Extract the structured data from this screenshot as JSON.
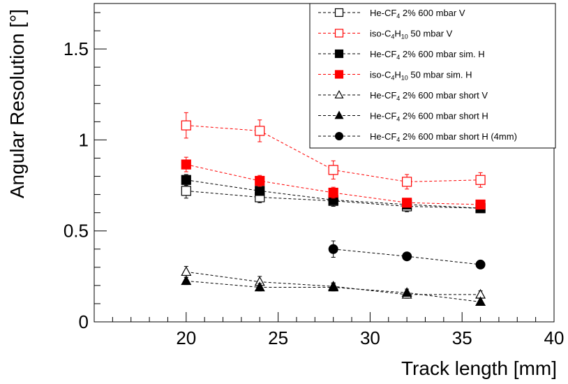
{
  "chart_data": {
    "type": "scatter",
    "xlabel": "Track length [mm]",
    "ylabel": "Angular Resolution [°]",
    "xlim": [
      15,
      40
    ],
    "ylim": [
      0,
      1.75
    ],
    "x_ticks": [
      "20",
      "25",
      "30",
      "35",
      "40"
    ],
    "y_ticks": [
      "0",
      "0.5",
      "1",
      "1.5"
    ],
    "legend_position": "top-right",
    "series": [
      {
        "name_parts": [
          "He-CF",
          "4",
          " 2% 600 mbar V"
        ],
        "color": "#000000",
        "marker": "open-square",
        "line": "dashed",
        "x": [
          20,
          24,
          28,
          32,
          36
        ],
        "y": [
          0.72,
          0.685,
          0.665,
          0.635,
          0.625
        ],
        "err": [
          0.04,
          0.03,
          0.03,
          0.03,
          0.02
        ]
      },
      {
        "name_parts": [
          "iso-C",
          "4",
          "H",
          "10",
          " 50 mbar V"
        ],
        "color": "#ff0000",
        "marker": "open-square",
        "line": "dashed",
        "x": [
          20,
          24,
          28,
          32,
          36
        ],
        "y": [
          1.08,
          1.05,
          0.835,
          0.77,
          0.78
        ],
        "err": [
          0.07,
          0.06,
          0.05,
          0.04,
          0.04
        ]
      },
      {
        "name_parts": [
          "He-CF",
          "4",
          " 2% 600 mbar sim. H"
        ],
        "color": "#000000",
        "marker": "filled-square",
        "line": "dashed",
        "x": [
          20,
          24,
          28,
          32,
          36
        ],
        "y": [
          0.78,
          0.72,
          0.67,
          0.645,
          0.625
        ],
        "err": [
          0.03,
          0.02,
          0.02,
          0.02,
          0.02
        ]
      },
      {
        "name_parts": [
          "iso-C",
          "4",
          "H",
          "10",
          " 50 mbar sim. H"
        ],
        "color": "#ff0000",
        "marker": "filled-square",
        "line": "dashed",
        "x": [
          20,
          24,
          28,
          32,
          36
        ],
        "y": [
          0.865,
          0.775,
          0.71,
          0.655,
          0.645
        ],
        "err": [
          0.04,
          0.03,
          0.03,
          0.02,
          0.02
        ]
      },
      {
        "name_parts": [
          "He-CF",
          "4",
          " 2% 600 mbar short V"
        ],
        "color": "#000000",
        "marker": "open-triangle",
        "line": "dashed",
        "x": [
          20,
          24,
          28,
          32,
          36
        ],
        "y": [
          0.275,
          0.22,
          0.195,
          0.15,
          0.15
        ],
        "err": [
          0.03,
          0.03,
          0.02,
          0.02,
          0.02
        ]
      },
      {
        "name_parts": [
          "He-CF",
          "4",
          " 2% 600 mbar short H"
        ],
        "color": "#000000",
        "marker": "filled-triangle",
        "line": "dashed",
        "x": [
          20,
          24,
          28,
          32,
          36
        ],
        "y": [
          0.225,
          0.19,
          0.19,
          0.16,
          0.11
        ],
        "err": [
          0.02,
          0.02,
          0.02,
          0.02,
          0.01
        ]
      },
      {
        "name_parts": [
          "He-CF",
          "4",
          " 2% 600 mbar short H (4mm)"
        ],
        "color": "#000000",
        "marker": "filled-circle",
        "line": "dashed",
        "x": [
          28,
          32,
          36
        ],
        "y": [
          0.4,
          0.36,
          0.315
        ],
        "err": [
          0.045,
          0.015,
          0.015
        ]
      }
    ]
  }
}
